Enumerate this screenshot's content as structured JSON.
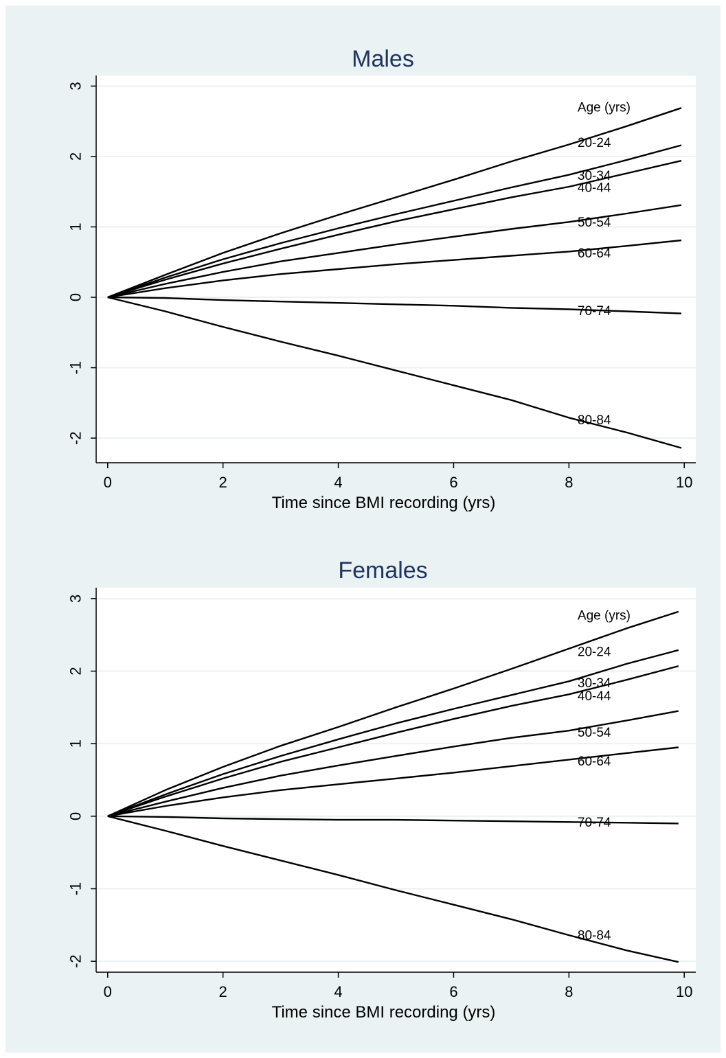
{
  "colors": {
    "background": "#eaf2f3",
    "plot_region": "#ffffff",
    "gridline": "#eaf2f3",
    "line": "#000000",
    "title": "#1e3560",
    "text": "#000000"
  },
  "chart_data": [
    {
      "type": "line",
      "title": "Males",
      "xlabel": "Time since BMI recording (yrs)",
      "ylabel": "",
      "xlim": [
        -0.2,
        10.2
      ],
      "ylim": [
        -2.35,
        3.15
      ],
      "x_ticks": [
        0,
        2,
        4,
        6,
        8,
        10
      ],
      "x_tick_labels": [
        "0",
        "2",
        "4",
        "6",
        "8",
        "10"
      ],
      "y_ticks": [
        -2,
        -1,
        0,
        1,
        2,
        3
      ],
      "y_tick_labels": [
        "-2",
        "-1",
        "0",
        "1",
        "2",
        "3"
      ],
      "grid": true,
      "legend_title": "Age (yrs)",
      "legend_title_value": 2.69,
      "x": [
        0,
        1,
        2,
        3,
        4,
        5,
        6,
        7,
        8,
        9,
        9.95
      ],
      "series": [
        {
          "name": "20-24",
          "label_value": 2.19,
          "values": [
            0,
            0.32,
            0.63,
            0.91,
            1.17,
            1.42,
            1.67,
            1.93,
            2.17,
            2.43,
            2.69
          ]
        },
        {
          "name": "30-34",
          "label_value": 1.72,
          "values": [
            0,
            0.28,
            0.54,
            0.77,
            0.98,
            1.18,
            1.37,
            1.56,
            1.74,
            1.95,
            2.16
          ]
        },
        {
          "name": "40-44",
          "label_value": 1.55,
          "values": [
            0,
            0.25,
            0.48,
            0.69,
            0.89,
            1.08,
            1.25,
            1.42,
            1.57,
            1.76,
            1.94
          ]
        },
        {
          "name": "50-54",
          "label_value": 1.06,
          "values": [
            0,
            0.19,
            0.36,
            0.51,
            0.63,
            0.75,
            0.86,
            0.97,
            1.07,
            1.19,
            1.31
          ]
        },
        {
          "name": "60-64",
          "label_value": 0.62,
          "values": [
            0,
            0.13,
            0.24,
            0.33,
            0.4,
            0.47,
            0.53,
            0.59,
            0.65,
            0.73,
            0.81
          ]
        },
        {
          "name": "70-74",
          "label_value": -0.2,
          "values": [
            0,
            -0.01,
            -0.04,
            -0.06,
            -0.08,
            -0.1,
            -0.12,
            -0.15,
            -0.17,
            -0.2,
            -0.23
          ]
        },
        {
          "name": "80-84",
          "label_value": -1.75,
          "values": [
            0,
            -0.2,
            -0.42,
            -0.63,
            -0.83,
            -1.04,
            -1.25,
            -1.46,
            -1.71,
            -1.92,
            -2.14
          ]
        }
      ]
    },
    {
      "type": "line",
      "title": "Females",
      "xlabel": "Time since BMI recording (yrs)",
      "ylabel": "",
      "xlim": [
        -0.2,
        10.2
      ],
      "ylim": [
        -2.15,
        3.15
      ],
      "x_ticks": [
        0,
        2,
        4,
        6,
        8,
        10
      ],
      "x_tick_labels": [
        "0",
        "2",
        "4",
        "6",
        "8",
        "10"
      ],
      "y_ticks": [
        -2,
        -1,
        0,
        1,
        2,
        3
      ],
      "y_tick_labels": [
        "-2",
        "-1",
        "0",
        "1",
        "2",
        "3"
      ],
      "grid": true,
      "legend_title": "Age (yrs)",
      "legend_title_value": 2.76,
      "x": [
        0,
        1,
        2,
        3,
        4,
        5,
        6,
        7,
        8,
        9,
        9.9
      ],
      "series": [
        {
          "name": "20-24",
          "label_value": 2.26,
          "values": [
            0,
            0.36,
            0.68,
            0.97,
            1.23,
            1.5,
            1.76,
            2.03,
            2.31,
            2.59,
            2.82
          ]
        },
        {
          "name": "30-34",
          "label_value": 1.83,
          "values": [
            0,
            0.3,
            0.58,
            0.83,
            1.06,
            1.28,
            1.48,
            1.67,
            1.86,
            2.1,
            2.29
          ]
        },
        {
          "name": "40-44",
          "label_value": 1.65,
          "values": [
            0,
            0.27,
            0.52,
            0.75,
            0.95,
            1.15,
            1.34,
            1.52,
            1.68,
            1.88,
            2.07
          ]
        },
        {
          "name": "50-54",
          "label_value": 1.15,
          "values": [
            0,
            0.2,
            0.39,
            0.56,
            0.7,
            0.83,
            0.96,
            1.08,
            1.18,
            1.32,
            1.45
          ]
        },
        {
          "name": "60-64",
          "label_value": 0.75,
          "values": [
            0,
            0.14,
            0.26,
            0.36,
            0.44,
            0.52,
            0.6,
            0.69,
            0.78,
            0.87,
            0.95
          ]
        },
        {
          "name": "70-74",
          "label_value": -0.09,
          "values": [
            0,
            -0.01,
            -0.03,
            -0.04,
            -0.05,
            -0.05,
            -0.06,
            -0.07,
            -0.08,
            -0.09,
            -0.1
          ]
        },
        {
          "name": "80-84",
          "label_value": -1.65,
          "values": [
            0,
            -0.2,
            -0.41,
            -0.61,
            -0.81,
            -1.02,
            -1.22,
            -1.42,
            -1.64,
            -1.85,
            -2.01
          ]
        }
      ]
    }
  ]
}
